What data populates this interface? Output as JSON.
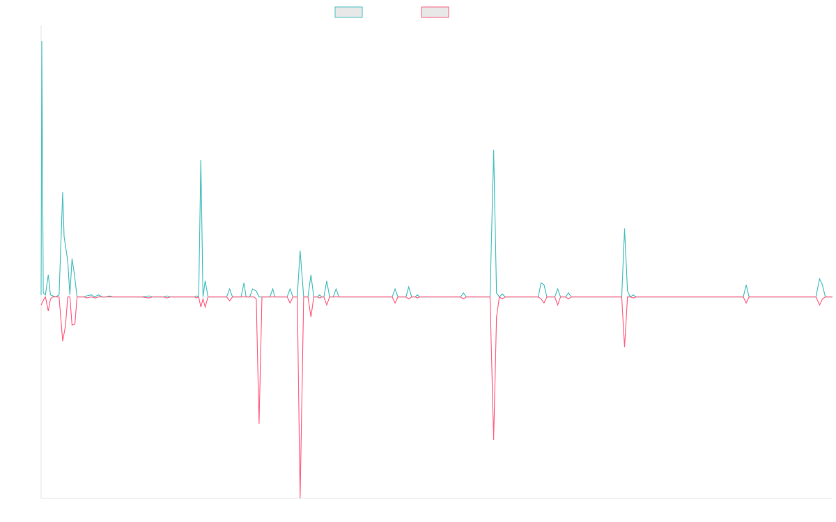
{
  "chart_data": {
    "type": "line",
    "title": "",
    "xlabel": "",
    "ylabel": "",
    "ylim": [
      -100,
      135
    ],
    "grid": false,
    "legend": {
      "placement": "top-center",
      "swatch_fill": "#e8e8e8"
    },
    "series": [
      {
        "color": "#4bc0c0",
        "points": [
          [
            0,
            1
          ],
          [
            0.1,
            127
          ],
          [
            0.3,
            2
          ],
          [
            0.6,
            1
          ],
          [
            1,
            11
          ],
          [
            1.3,
            1
          ],
          [
            2,
            0
          ],
          [
            2.5,
            1
          ],
          [
            3,
            52
          ],
          [
            3.2,
            30
          ],
          [
            3.7,
            18
          ],
          [
            4,
            1
          ],
          [
            4.3,
            19
          ],
          [
            4.6,
            12
          ],
          [
            5,
            0
          ],
          [
            6,
            0
          ],
          [
            6.3,
            0.5
          ],
          [
            7,
            1
          ],
          [
            7.4,
            0
          ],
          [
            8,
            1
          ],
          [
            8.5,
            0
          ],
          [
            9,
            0
          ],
          [
            9.5,
            0.5
          ],
          [
            10,
            0
          ],
          [
            14,
            0
          ],
          [
            15,
            0.5
          ],
          [
            15.5,
            0
          ],
          [
            17,
            0
          ],
          [
            17.5,
            0.5
          ],
          [
            18,
            0
          ],
          [
            21.3,
            0
          ],
          [
            21.6,
            0.5
          ],
          [
            21.9,
            0
          ],
          [
            22.2,
            68
          ],
          [
            22.5,
            0
          ],
          [
            22.8,
            8
          ],
          [
            23.2,
            0
          ],
          [
            25.8,
            0
          ],
          [
            26.2,
            4
          ],
          [
            26.6,
            0
          ],
          [
            27.8,
            0
          ],
          [
            28.2,
            7
          ],
          [
            28.5,
            0
          ],
          [
            29,
            0
          ],
          [
            29.4,
            4
          ],
          [
            29.9,
            3
          ],
          [
            30.3,
            0
          ],
          [
            31.8,
            0
          ],
          [
            32.2,
            4
          ],
          [
            32.5,
            0
          ],
          [
            34.2,
            0
          ],
          [
            34.6,
            4
          ],
          [
            35,
            0
          ],
          [
            35.6,
            0
          ],
          [
            36,
            23
          ],
          [
            36.5,
            0
          ],
          [
            37.1,
            0
          ],
          [
            37.5,
            11
          ],
          [
            37.9,
            0
          ],
          [
            38.4,
            0
          ],
          [
            38.7,
            1
          ],
          [
            39,
            0
          ],
          [
            39.3,
            0
          ],
          [
            39.7,
            8
          ],
          [
            40.1,
            0
          ],
          [
            40.6,
            0
          ],
          [
            41,
            4
          ],
          [
            41.4,
            0
          ],
          [
            48.8,
            0
          ],
          [
            49.2,
            4
          ],
          [
            49.6,
            0
          ],
          [
            50.7,
            0
          ],
          [
            51.1,
            5
          ],
          [
            51.5,
            0
          ],
          [
            52,
            0
          ],
          [
            52.3,
            1
          ],
          [
            52.6,
            0
          ],
          [
            58.3,
            0
          ],
          [
            58.7,
            2
          ],
          [
            59.1,
            0
          ],
          [
            62.4,
            0
          ],
          [
            62.9,
            73
          ],
          [
            63.3,
            2
          ],
          [
            63.7,
            0
          ],
          [
            64.1,
            1.5
          ],
          [
            64.5,
            0
          ],
          [
            68.7,
            0
          ],
          [
            69.1,
            0
          ],
          [
            69.5,
            7
          ],
          [
            69.9,
            6
          ],
          [
            70.3,
            0
          ],
          [
            71.4,
            0
          ],
          [
            71.8,
            4
          ],
          [
            72.2,
            0
          ],
          [
            72.9,
            0
          ],
          [
            73.3,
            2
          ],
          [
            73.7,
            0
          ],
          [
            80.3,
            0
          ],
          [
            80.7,
            0
          ],
          [
            81.1,
            34
          ],
          [
            81.5,
            3
          ],
          [
            81.9,
            0
          ],
          [
            82.3,
            1
          ],
          [
            82.7,
            0
          ],
          [
            97.6,
            0
          ],
          [
            98,
            6
          ],
          [
            98.4,
            0
          ],
          [
            107.7,
            0
          ],
          [
            108.2,
            9
          ],
          [
            108.6,
            6
          ],
          [
            109,
            0
          ],
          [
            110,
            0
          ]
        ]
      },
      {
        "color": "#ff6384",
        "points": [
          [
            0,
            -4
          ],
          [
            0.4,
            -1
          ],
          [
            0.6,
            0
          ],
          [
            1,
            -7
          ],
          [
            1.3,
            -1
          ],
          [
            1.6,
            0
          ],
          [
            2,
            0
          ],
          [
            2.5,
            0
          ],
          [
            3,
            -22
          ],
          [
            3.4,
            -14
          ],
          [
            3.7,
            0
          ],
          [
            4,
            0
          ],
          [
            4.3,
            -14
          ],
          [
            4.7,
            -13.5
          ],
          [
            5,
            0
          ],
          [
            6,
            0
          ],
          [
            6.3,
            -0.5
          ],
          [
            7,
            0
          ],
          [
            7.5,
            -0.5
          ],
          [
            8,
            0
          ],
          [
            10,
            0
          ],
          [
            14,
            0
          ],
          [
            15,
            -0.5
          ],
          [
            15.5,
            0
          ],
          [
            17,
            0
          ],
          [
            17.5,
            -0.5
          ],
          [
            18,
            0
          ],
          [
            21.3,
            0
          ],
          [
            21.6,
            -0.5
          ],
          [
            21.9,
            0
          ],
          [
            22.2,
            -5
          ],
          [
            22.5,
            -1
          ],
          [
            22.8,
            -5
          ],
          [
            23.2,
            0
          ],
          [
            25.8,
            0
          ],
          [
            26.2,
            -2
          ],
          [
            26.6,
            0
          ],
          [
            27.8,
            0
          ],
          [
            28.2,
            0
          ],
          [
            28.5,
            0
          ],
          [
            29,
            0
          ],
          [
            29.3,
            0
          ],
          [
            29.6,
            0
          ],
          [
            29.9,
            -1
          ],
          [
            30.3,
            -63
          ],
          [
            30.7,
            0
          ],
          [
            31.8,
            0
          ],
          [
            32.2,
            0
          ],
          [
            32.5,
            0
          ],
          [
            34.2,
            0
          ],
          [
            34.6,
            -3
          ],
          [
            35,
            0
          ],
          [
            35.6,
            0
          ],
          [
            36,
            -100
          ],
          [
            36.5,
            0
          ],
          [
            37.1,
            0
          ],
          [
            37.5,
            -10
          ],
          [
            37.9,
            0
          ],
          [
            38.4,
            0
          ],
          [
            38.7,
            -0.5
          ],
          [
            39,
            0
          ],
          [
            39.3,
            0
          ],
          [
            39.7,
            -4
          ],
          [
            40.1,
            0
          ],
          [
            40.6,
            0
          ],
          [
            41,
            0
          ],
          [
            41.4,
            0
          ],
          [
            48.8,
            0
          ],
          [
            49.2,
            -3
          ],
          [
            49.6,
            0
          ],
          [
            50.7,
            0
          ],
          [
            51.1,
            -1
          ],
          [
            51.5,
            0
          ],
          [
            52,
            0
          ],
          [
            52.3,
            -0.5
          ],
          [
            52.6,
            0
          ],
          [
            58.3,
            0
          ],
          [
            58.7,
            -1
          ],
          [
            59.1,
            0
          ],
          [
            62.4,
            0
          ],
          [
            62.9,
            -71
          ],
          [
            63.3,
            -10
          ],
          [
            63.7,
            0
          ],
          [
            64.1,
            -1
          ],
          [
            64.5,
            0
          ],
          [
            68.7,
            0
          ],
          [
            69.1,
            0
          ],
          [
            69.5,
            -1
          ],
          [
            69.9,
            -3
          ],
          [
            70.3,
            0
          ],
          [
            71.4,
            0
          ],
          [
            71.8,
            -4
          ],
          [
            72.2,
            0
          ],
          [
            72.9,
            0
          ],
          [
            73.3,
            -1
          ],
          [
            73.7,
            0
          ],
          [
            80.3,
            0
          ],
          [
            80.7,
            0
          ],
          [
            81.1,
            -25
          ],
          [
            81.5,
            0
          ],
          [
            81.9,
            0
          ],
          [
            82.3,
            -0.5
          ],
          [
            82.7,
            0
          ],
          [
            97.6,
            0
          ],
          [
            98,
            -3
          ],
          [
            98.4,
            0
          ],
          [
            107.7,
            0
          ],
          [
            108.2,
            -4
          ],
          [
            108.6,
            -1
          ],
          [
            109,
            0
          ],
          [
            110,
            0
          ]
        ]
      }
    ],
    "xlim": [
      0,
      110
    ]
  }
}
